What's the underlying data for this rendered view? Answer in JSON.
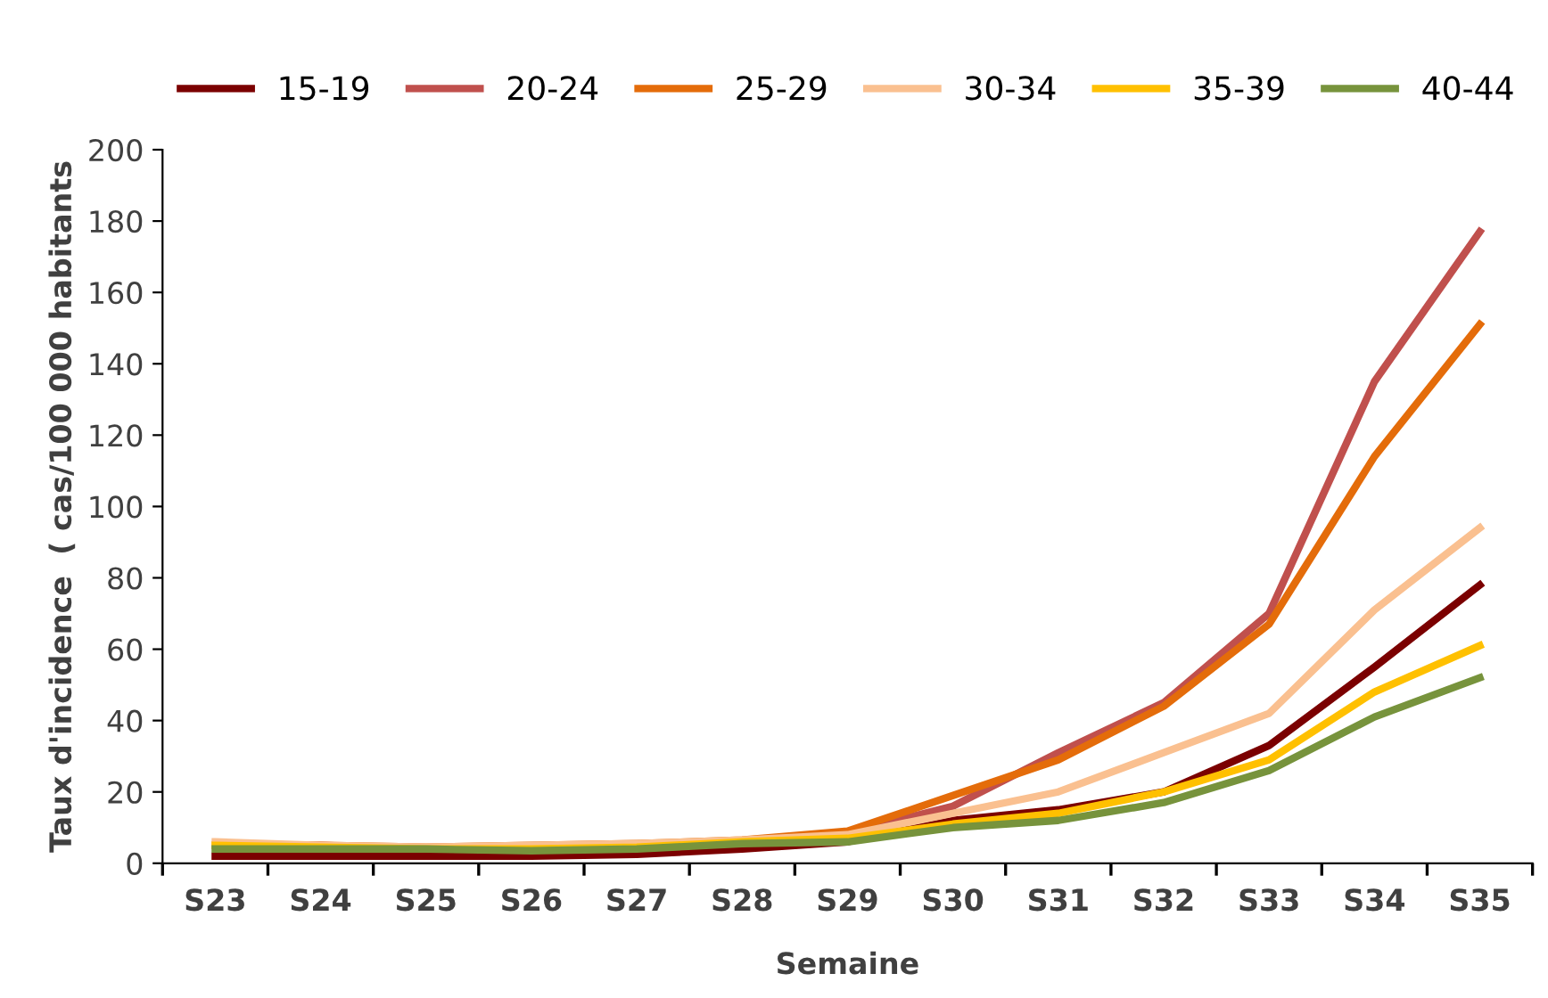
{
  "chart_data": {
    "type": "line",
    "xlabel": "Semaine",
    "ylabel": "Taux d'incidence  ( cas/100 000 habitants",
    "categories": [
      "S23",
      "S24",
      "S25",
      "S26",
      "S27",
      "S28",
      "S29",
      "S30",
      "S31",
      "S32",
      "S33",
      "S34",
      "S35"
    ],
    "series": [
      {
        "name": "15-19",
        "color": "#7b0000",
        "values": [
          2,
          2,
          2,
          2,
          2.5,
          4,
          6,
          12,
          15,
          20,
          33,
          55,
          78
        ]
      },
      {
        "name": "20-24",
        "color": "#c0504d",
        "values": [
          5,
          5,
          4,
          4.5,
          5,
          6,
          8.5,
          16,
          31,
          45,
          70,
          135,
          177
        ]
      },
      {
        "name": "25-29",
        "color": "#e46c0a",
        "values": [
          5,
          5,
          4.5,
          5,
          5.5,
          6.5,
          9,
          19,
          29,
          44,
          67,
          114,
          151
        ]
      },
      {
        "name": "30-34",
        "color": "#fac090",
        "values": [
          6,
          5,
          4.5,
          5,
          5.5,
          6.5,
          8,
          14,
          20,
          31,
          42,
          71,
          94
        ]
      },
      {
        "name": "35-39",
        "color": "#ffc000",
        "values": [
          5,
          4.5,
          4,
          4,
          4.5,
          6,
          7,
          11,
          14,
          20,
          29,
          48,
          61
        ]
      },
      {
        "name": "40-44",
        "color": "#77933c",
        "values": [
          4,
          4,
          4,
          3.5,
          4,
          5.5,
          6,
          10,
          12,
          17,
          26,
          41,
          52
        ]
      }
    ],
    "ylim": [
      0,
      200
    ],
    "yticks": [
      0,
      20,
      40,
      60,
      80,
      100,
      120,
      140,
      160,
      180,
      200
    ],
    "grid": false,
    "legend": "top",
    "marker": "none",
    "line_style": "solid"
  }
}
